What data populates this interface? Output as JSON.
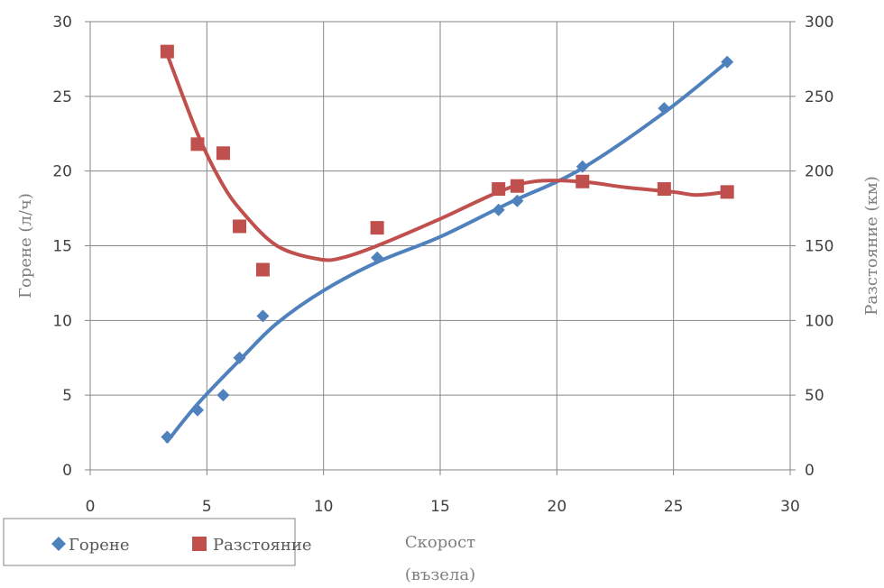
{
  "chart_data": {
    "type": "scatter",
    "x": [
      3.3,
      4.6,
      5.7,
      6.4,
      7.4,
      12.3,
      17.5,
      18.3,
      21.1,
      24.6,
      27.3
    ],
    "series": [
      {
        "name": "Горене",
        "axis": "left",
        "color": "#4f81bd",
        "marker": "diamond",
        "values": [
          2.2,
          4.0,
          5.0,
          7.5,
          10.3,
          14.2,
          17.4,
          18.0,
          20.3,
          24.2,
          27.3
        ],
        "trend": [
          [
            3.3,
            1.9
          ],
          [
            4.6,
            4.4
          ],
          [
            6.5,
            7.5
          ],
          [
            8.0,
            9.8
          ],
          [
            10.0,
            12.0
          ],
          [
            12.3,
            13.9
          ],
          [
            15.0,
            15.6
          ],
          [
            18.0,
            17.9
          ],
          [
            21.0,
            20.1
          ],
          [
            24.5,
            23.8
          ],
          [
            27.3,
            27.3
          ]
        ]
      },
      {
        "name": "Разстояние",
        "axis": "right",
        "color": "#c0504d",
        "marker": "square",
        "values": [
          280,
          218,
          212,
          163,
          134,
          162,
          188,
          190,
          193,
          188,
          186
        ],
        "trend": [
          [
            3.3,
            278
          ],
          [
            4.6,
            225
          ],
          [
            5.6,
            193
          ],
          [
            6.5,
            173
          ],
          [
            8.0,
            150
          ],
          [
            9.8,
            141
          ],
          [
            10.8,
            142
          ],
          [
            12.3,
            150
          ],
          [
            15.0,
            168
          ],
          [
            17.5,
            186
          ],
          [
            19.0,
            193
          ],
          [
            21.0,
            193
          ],
          [
            23.0,
            189
          ],
          [
            25.0,
            186
          ],
          [
            26.0,
            184
          ],
          [
            27.3,
            186
          ]
        ]
      }
    ],
    "xlabel": [
      "Скорост",
      "(възела)"
    ],
    "ylabel_left": "Горене (л/ч)",
    "ylabel_right": "Разстояние (км)",
    "xlim": [
      0,
      30
    ],
    "ylim_left": [
      0,
      30
    ],
    "ylim_right": [
      0,
      300
    ],
    "xticks": [
      "0",
      "5",
      "10",
      "15",
      "20",
      "25",
      "30"
    ],
    "yticks_left": [
      "0",
      "5",
      "10",
      "15",
      "20",
      "25",
      "30"
    ],
    "yticks_right": [
      "0",
      "50",
      "100",
      "150",
      "200",
      "250",
      "300"
    ],
    "grid": true,
    "legend_position": "bottom-left"
  }
}
